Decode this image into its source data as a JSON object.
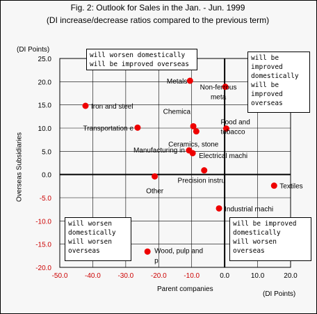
{
  "chart_data": {
    "type": "scatter",
    "title": "Fig. 2: Outlook for Sales in the Jan. - Jun. 1999",
    "subtitle": "(DI increase/decrease ratios compared to the previous term)",
    "xlabel": "Parent companies",
    "ylabel": "Overseas Subsidiaries",
    "x_unit": "(DI Points)",
    "y_unit": "(DI Points)",
    "xlim": [
      -50,
      20
    ],
    "ylim": [
      -20,
      25
    ],
    "x_ticks": [
      "-50.0",
      "-40.0",
      "-30.0",
      "-20.0",
      "-10.0",
      "0.0",
      "10.0",
      "20.0"
    ],
    "y_ticks": [
      "25.0",
      "20.0",
      "15.0",
      "10.0",
      "5.0",
      "0.0",
      "-5.0",
      "-10.0",
      "-15.0",
      "-20.0"
    ],
    "grid": true,
    "negative_tick_color": "#cc0000",
    "point_color": "#ee0000",
    "points": [
      {
        "label": [
          "Metals"
        ],
        "x": -10.5,
        "y": 20.2
      },
      {
        "label": [
          "Non-ferrous",
          "meta"
        ],
        "x": 0.2,
        "y": 18.9
      },
      {
        "label": [
          "Iron and steel"
        ],
        "x": -42.2,
        "y": 14.8
      },
      {
        "label": [
          "Chemica"
        ],
        "x": -9.5,
        "y": 10.4
      },
      {
        "label": [
          "Food and",
          "tobacco"
        ],
        "x": 0.5,
        "y": 9.9
      },
      {
        "label": [
          "Transportation e"
        ],
        "x": -26.4,
        "y": 10.1
      },
      {
        "label": [
          "Ceramics, stone"
        ],
        "x": -8.6,
        "y": 9.3
      },
      {
        "label": [
          "Manufacturing in"
        ],
        "x": -10.8,
        "y": 5.2
      },
      {
        "label": [
          "Electrical machi"
        ],
        "x": -9.7,
        "y": 4.6
      },
      {
        "label": [
          "Other"
        ],
        "x": -21.2,
        "y": -0.4
      },
      {
        "label": [
          "Precision instru"
        ],
        "x": -6.2,
        "y": 0.9
      },
      {
        "label": [
          "Textiles"
        ],
        "x": 15.0,
        "y": -2.4
      },
      {
        "label": [
          "Industrial machi"
        ],
        "x": -1.7,
        "y": -7.3
      },
      {
        "label": [
          "Wood, pulp and",
          "p"
        ],
        "x": -23.4,
        "y": -16.6
      }
    ],
    "annotations": [
      {
        "id": "top-left",
        "lines": [
          "will worsen domestically",
          "will be improved overseas"
        ]
      },
      {
        "id": "top-right",
        "lines": [
          "will be",
          "improved",
          "domestically",
          "will be",
          "improved",
          "overseas"
        ]
      },
      {
        "id": "bottom-left",
        "lines": [
          "will worsen",
          "domestically",
          "will worsen",
          "overseas"
        ]
      },
      {
        "id": "bottom-right",
        "lines": [
          "will be improved",
          "domestically",
          "will worsen",
          "overseas"
        ]
      }
    ]
  }
}
